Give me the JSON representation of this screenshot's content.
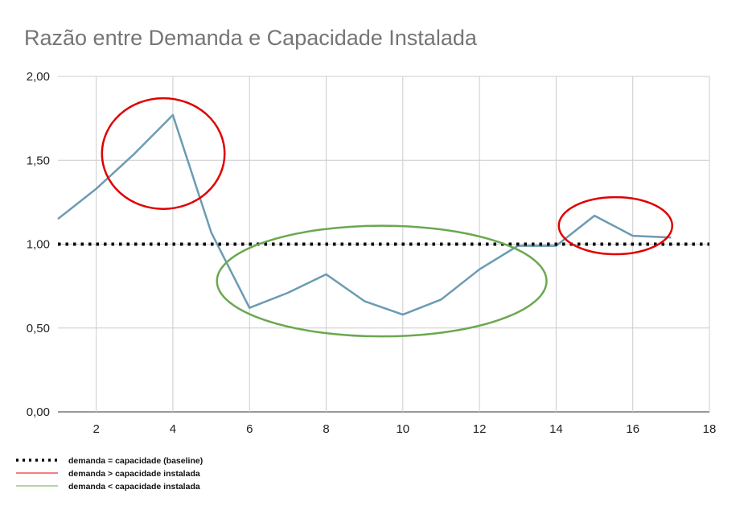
{
  "chart_data": {
    "type": "line",
    "title": "Razão entre Demanda e Capacidade Instalada",
    "xlabel": "",
    "ylabel": "",
    "xlim": [
      1,
      18
    ],
    "ylim": [
      0,
      2
    ],
    "x_ticks": [
      2,
      4,
      6,
      8,
      10,
      12,
      14,
      16,
      18
    ],
    "x_tick_labels": [
      "2",
      "4",
      "6",
      "8",
      "10",
      "12",
      "14",
      "16",
      "18"
    ],
    "y_ticks": [
      0,
      0.5,
      1,
      1.5,
      2
    ],
    "y_tick_labels": [
      "0,00",
      "0,50",
      "1,00",
      "1,50",
      "2,00"
    ],
    "grid": true,
    "series": [
      {
        "color": "#6b9bb1",
        "style": "solid",
        "x": [
          1,
          2,
          3,
          4,
          5,
          6,
          7,
          8,
          9,
          10,
          11,
          12,
          13,
          14,
          15,
          16,
          17
        ],
        "values": [
          1.15,
          1.33,
          1.54,
          1.77,
          1.07,
          0.62,
          0.71,
          0.82,
          0.66,
          0.58,
          0.67,
          0.85,
          0.99,
          0.99,
          1.17,
          1.05,
          1.04
        ]
      },
      {
        "color": "#000000",
        "style": "dotted",
        "x": [
          1,
          18
        ],
        "values": [
          1.0,
          1.0
        ]
      }
    ],
    "annotations": [
      {
        "shape": "ellipse",
        "color": "#e00000",
        "cx": 3.75,
        "cy": 1.54,
        "rx": 1.6,
        "ry": 0.33
      },
      {
        "shape": "ellipse",
        "color": "#6aa84f",
        "cx": 9.45,
        "cy": 0.78,
        "rx": 4.3,
        "ry": 0.33
      },
      {
        "shape": "ellipse",
        "color": "#e00000",
        "cx": 15.55,
        "cy": 1.11,
        "rx": 1.48,
        "ry": 0.17
      }
    ],
    "legend": {
      "position": "bottom-left",
      "entries": [
        {
          "label": "demanda = capacidade (baseline)",
          "color": "#000000",
          "style": "dotted"
        },
        {
          "label": "demanda > capacidade instalada",
          "color": "#e00000",
          "style": "solid"
        },
        {
          "label": "demanda < capacidade instalada",
          "color": "#6aa84f",
          "style": "solid"
        }
      ]
    }
  }
}
